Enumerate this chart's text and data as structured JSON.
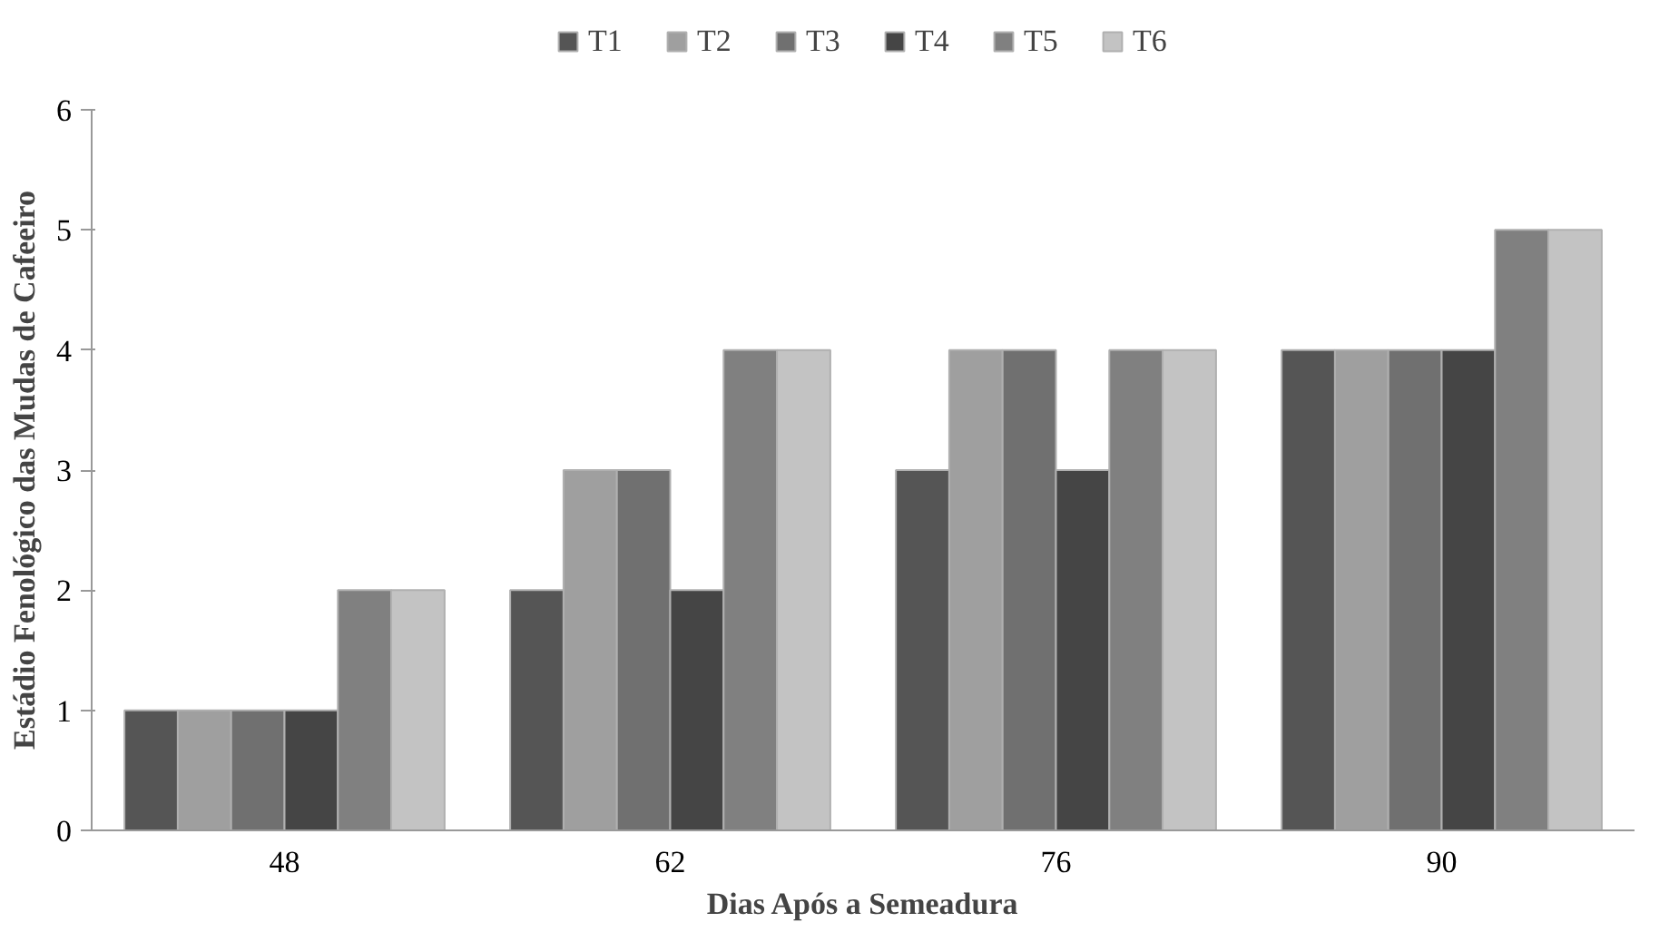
{
  "chart_data": {
    "type": "bar",
    "xlabel": "Dias Após a Semeadura",
    "ylabel": "Estádio Fenológico das Mudas de Cafeeiro",
    "categories": [
      "48",
      "62",
      "76",
      "90"
    ],
    "series": [
      {
        "name": "T1",
        "color": "#555555",
        "values": [
          1,
          2,
          3,
          4
        ]
      },
      {
        "name": "T2",
        "color": "#9f9f9f",
        "values": [
          1,
          3,
          4,
          4
        ]
      },
      {
        "name": "T3",
        "color": "#707070",
        "values": [
          1,
          3,
          4,
          4
        ]
      },
      {
        "name": "T4",
        "color": "#454545",
        "values": [
          1,
          2,
          3,
          4
        ]
      },
      {
        "name": "T5",
        "color": "#808080",
        "values": [
          2,
          4,
          4,
          5
        ]
      },
      {
        "name": "T6",
        "color": "#c3c3c3",
        "values": [
          2,
          4,
          4,
          5
        ]
      }
    ],
    "ylim": [
      0,
      6
    ],
    "yticks": [
      0,
      1,
      2,
      3,
      4,
      5,
      6
    ],
    "grid": false,
    "legend": "top"
  }
}
